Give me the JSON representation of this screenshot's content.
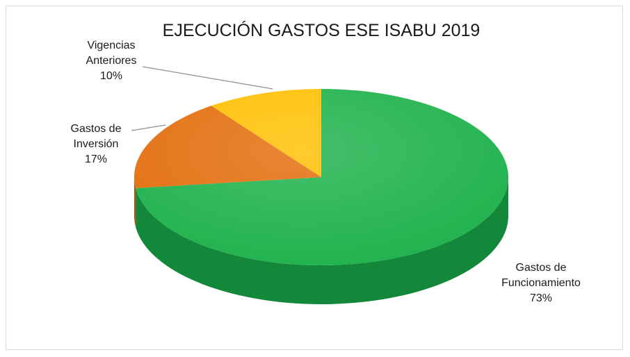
{
  "chart_data": {
    "type": "pie",
    "title": "EJECUCIÓN GASTOS ESE ISABU 2019",
    "categories": [
      "Gastos de Funcionamiento",
      "Gastos de Inversión",
      "Vigencias Anteriores"
    ],
    "values": [
      73,
      17,
      10
    ],
    "unit": "%",
    "colors": [
      "#1db14b",
      "#e36c0a",
      "#ffc000"
    ],
    "side_colors": [
      "#13873a",
      "#b15409",
      "#c79500"
    ],
    "labels": [
      {
        "lines": [
          "Gastos de",
          "Funcionamiento"
        ],
        "pct": "73%"
      },
      {
        "lines": [
          "Gastos de",
          "Inversión"
        ],
        "pct": "17%"
      },
      {
        "lines": [
          "Vigencias",
          "Anteriores"
        ],
        "pct": "10%"
      }
    ],
    "legend": "none",
    "style": "3d"
  }
}
